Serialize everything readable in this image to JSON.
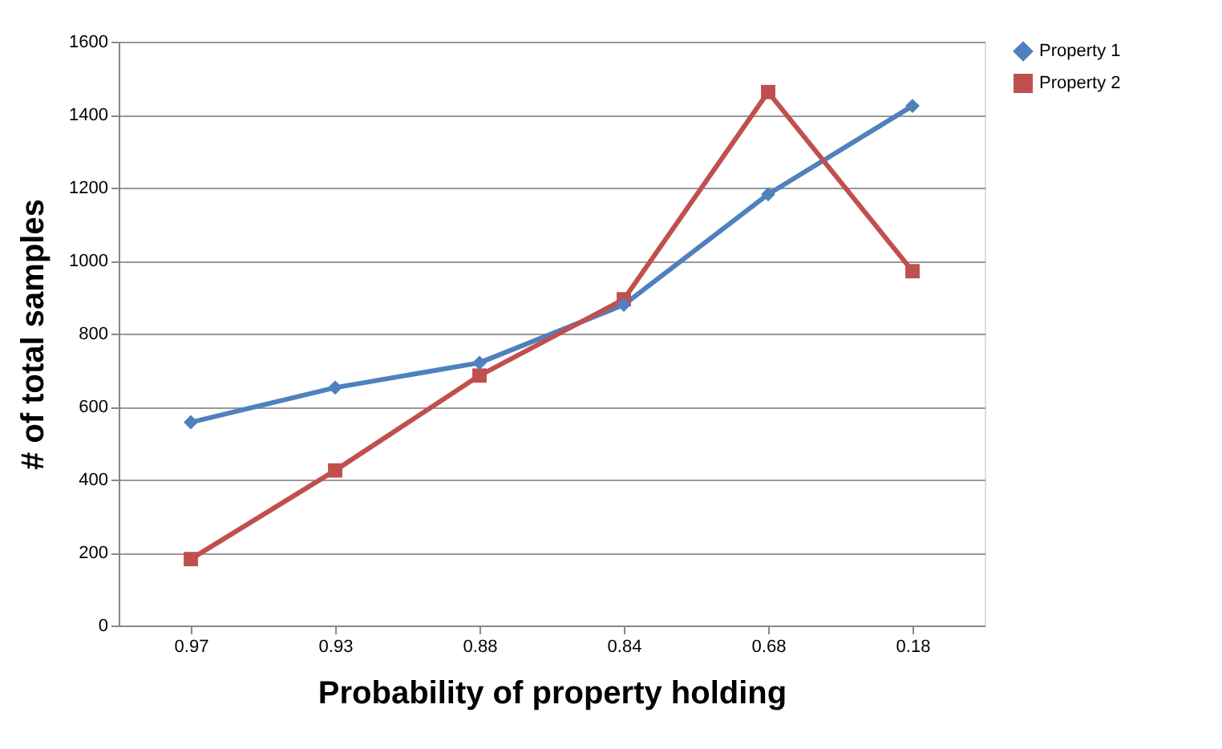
{
  "chart_data": {
    "type": "line",
    "xlabel": "Probability of property holding",
    "ylabel": "# of total samples",
    "categories": [
      "0.97",
      "0.93",
      "0.88",
      "0.84",
      "0.68",
      "0.18"
    ],
    "series": [
      {
        "name": "Property 1",
        "color": "#4f81bd",
        "marker": "diamond",
        "values": [
          557,
          652,
          720,
          879,
          1182,
          1424
        ]
      },
      {
        "name": "Property 2",
        "color": "#c0504d",
        "marker": "square",
        "values": [
          182,
          425,
          685,
          894,
          1462,
          971
        ]
      }
    ],
    "ylim": [
      0,
      1600
    ],
    "yticks": [
      0,
      200,
      400,
      600,
      800,
      1000,
      1200,
      1400,
      1600
    ],
    "grid": "y",
    "legend": "right",
    "line_style": "solid"
  }
}
